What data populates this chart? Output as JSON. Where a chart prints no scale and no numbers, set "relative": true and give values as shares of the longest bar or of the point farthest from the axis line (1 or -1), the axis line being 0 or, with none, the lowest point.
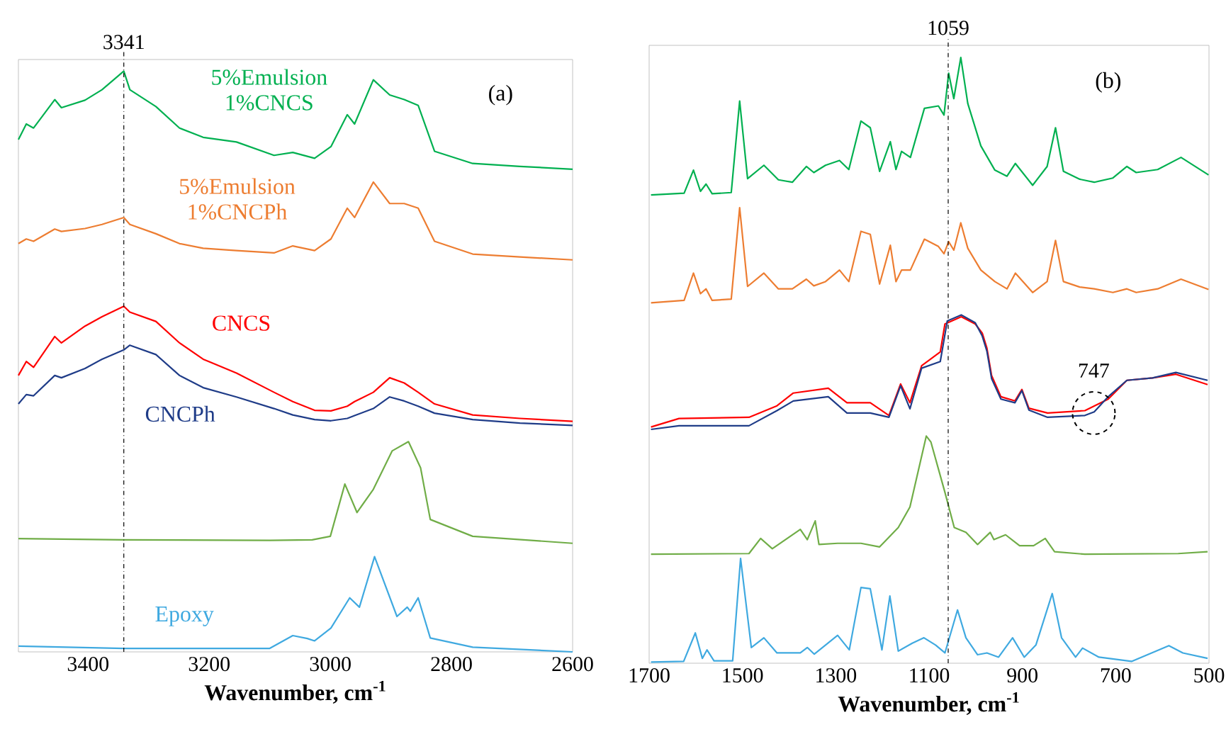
{
  "chart_data": [
    {
      "type": "line",
      "relative": true,
      "xlabel": "Wavenumber, cm$^{-1}$",
      "xlim": [
        3515,
        2600
      ],
      "xticks": [
        3400,
        3200,
        3000,
        2800,
        2600
      ],
      "annotations": [
        "(a)"
      ],
      "ref_lines": [
        {
          "axis": "x",
          "value": 3341,
          "label": "3341",
          "color": "#000000"
        }
      ],
      "series": [
        {
          "name": "5%Emulsion 1%CNCS",
          "color": "#00b050",
          "x": [
            3515,
            3502,
            3490,
            3455,
            3444,
            3405,
            3377,
            3341,
            3331,
            3288,
            3249,
            3210,
            3155,
            3093,
            3062,
            3026,
            2999,
            2972,
            2960,
            2929,
            2902,
            2878,
            2855,
            2828,
            2765,
            2687,
            2600
          ],
          "values": [
            0.882,
            0.909,
            0.902,
            0.951,
            0.937,
            0.95,
            0.968,
            1.0,
            0.968,
            0.939,
            0.902,
            0.886,
            0.878,
            0.855,
            0.86,
            0.85,
            0.87,
            0.925,
            0.909,
            0.985,
            0.959,
            0.951,
            0.941,
            0.862,
            0.841,
            0.836,
            0.831
          ]
        },
        {
          "name": "5%Emulsion 1%CNCPh",
          "color": "#ed7d31",
          "x": [
            3515,
            3502,
            3490,
            3455,
            3444,
            3405,
            3377,
            3341,
            3331,
            3288,
            3249,
            3210,
            3155,
            3093,
            3062,
            3026,
            2999,
            2972,
            2960,
            2929,
            2902,
            2878,
            2855,
            2828,
            2765,
            2687,
            2600
          ],
          "values": [
            0.703,
            0.711,
            0.707,
            0.728,
            0.724,
            0.729,
            0.736,
            0.748,
            0.736,
            0.72,
            0.703,
            0.695,
            0.691,
            0.687,
            0.699,
            0.691,
            0.711,
            0.764,
            0.748,
            0.809,
            0.772,
            0.772,
            0.764,
            0.707,
            0.685,
            0.68,
            0.675
          ]
        },
        {
          "name": "CNCS",
          "color": "#ff0000",
          "x": [
            3515,
            3502,
            3490,
            3455,
            3444,
            3405,
            3377,
            3341,
            3331,
            3288,
            3249,
            3210,
            3155,
            3093,
            3062,
            3026,
            2999,
            2972,
            2960,
            2929,
            2902,
            2878,
            2855,
            2828,
            2765,
            2687,
            2600
          ],
          "values": [
            0.476,
            0.5,
            0.49,
            0.543,
            0.532,
            0.561,
            0.577,
            0.595,
            0.585,
            0.569,
            0.532,
            0.504,
            0.48,
            0.447,
            0.431,
            0.416,
            0.415,
            0.423,
            0.431,
            0.447,
            0.472,
            0.463,
            0.447,
            0.427,
            0.408,
            0.402,
            0.397
          ]
        },
        {
          "name": "CNCPh",
          "color": "#1f3c88",
          "x": [
            3515,
            3502,
            3490,
            3455,
            3444,
            3405,
            3377,
            3341,
            3331,
            3288,
            3249,
            3210,
            3155,
            3093,
            3062,
            3026,
            2999,
            2972,
            2960,
            2929,
            2902,
            2878,
            2855,
            2828,
            2765,
            2687,
            2600
          ],
          "values": [
            0.427,
            0.443,
            0.441,
            0.476,
            0.472,
            0.488,
            0.504,
            0.52,
            0.528,
            0.512,
            0.476,
            0.455,
            0.439,
            0.419,
            0.408,
            0.4,
            0.398,
            0.402,
            0.407,
            0.419,
            0.439,
            0.432,
            0.423,
            0.411,
            0.4,
            0.394,
            0.39
          ]
        },
        {
          "color": "#70ad47",
          "x": [
            3515,
            3341,
            3100,
            3030,
            3000,
            2976,
            2956,
            2929,
            2898,
            2871,
            2851,
            2835,
            2765,
            2600
          ],
          "values": [
            0.195,
            0.193,
            0.192,
            0.193,
            0.199,
            0.289,
            0.24,
            0.28,
            0.346,
            0.362,
            0.317,
            0.228,
            0.199,
            0.187
          ]
        },
        {
          "name": "Epoxy",
          "color": "#3fa9e0",
          "x": [
            3515,
            3341,
            3100,
            3062,
            3038,
            3026,
            2999,
            2968,
            2952,
            2927,
            2890,
            2873,
            2868,
            2855,
            2835,
            2765,
            2600
          ],
          "values": [
            0.01,
            0.006,
            0.006,
            0.028,
            0.023,
            0.019,
            0.041,
            0.093,
            0.077,
            0.164,
            0.061,
            0.077,
            0.07,
            0.093,
            0.024,
            0.008,
            0.0
          ]
        }
      ]
    },
    {
      "type": "line",
      "relative": true,
      "xlabel": "Wavenumber, cm$^{-1}$",
      "xlim": [
        1700,
        500
      ],
      "xticks": [
        1700,
        1500,
        1300,
        1100,
        900,
        700,
        500
      ],
      "annotations": [
        "(b)",
        {
          "text": "747",
          "x": 747,
          "y": 0.413
        }
      ],
      "ref_lines": [
        {
          "axis": "x",
          "value": 1059,
          "label": "1059",
          "color": "#000000"
        }
      ],
      "series": [
        {
          "color": "#00b050",
          "x": [
            1696,
            1625,
            1605,
            1590,
            1578,
            1565,
            1524,
            1506,
            1489,
            1454,
            1423,
            1393,
            1363,
            1347,
            1322,
            1292,
            1272,
            1246,
            1226,
            1206,
            1183,
            1171,
            1159,
            1140,
            1110,
            1080,
            1068,
            1058,
            1047,
            1032,
            1017,
            989,
            959,
            933,
            915,
            878,
            847,
            829,
            812,
            777,
            746,
            706,
            676,
            656,
            610,
            560,
            501
          ],
          "values": [
            0.773,
            0.776,
            0.814,
            0.779,
            0.791,
            0.775,
            0.777,
            0.928,
            0.8,
            0.822,
            0.798,
            0.794,
            0.82,
            0.81,
            0.822,
            0.83,
            0.815,
            0.895,
            0.884,
            0.812,
            0.861,
            0.815,
            0.845,
            0.835,
            0.916,
            0.92,
            0.905,
            0.974,
            0.932,
            1.0,
            0.924,
            0.854,
            0.814,
            0.804,
            0.825,
            0.789,
            0.82,
            0.884,
            0.812,
            0.799,
            0.794,
            0.801,
            0.82,
            0.81,
            0.815,
            0.835,
            0.806
          ]
        },
        {
          "color": "#ed7d31",
          "x": [
            1696,
            1625,
            1605,
            1590,
            1578,
            1565,
            1524,
            1506,
            1489,
            1454,
            1423,
            1393,
            1363,
            1347,
            1322,
            1292,
            1272,
            1246,
            1226,
            1206,
            1183,
            1171,
            1159,
            1140,
            1110,
            1080,
            1068,
            1058,
            1047,
            1032,
            1017,
            989,
            959,
            933,
            915,
            878,
            847,
            829,
            812,
            777,
            746,
            706,
            676,
            656,
            610,
            560,
            501
          ],
          "values": [
            0.595,
            0.599,
            0.644,
            0.61,
            0.618,
            0.599,
            0.601,
            0.752,
            0.622,
            0.644,
            0.618,
            0.618,
            0.634,
            0.623,
            0.63,
            0.649,
            0.63,
            0.713,
            0.708,
            0.626,
            0.69,
            0.63,
            0.649,
            0.649,
            0.7,
            0.688,
            0.676,
            0.696,
            0.682,
            0.727,
            0.685,
            0.649,
            0.63,
            0.618,
            0.644,
            0.612,
            0.63,
            0.698,
            0.63,
            0.621,
            0.618,
            0.612,
            0.618,
            0.612,
            0.618,
            0.634,
            0.617
          ]
        },
        {
          "color": "#ff0000",
          "x": [
            1696,
            1636,
            1486,
            1426,
            1391,
            1316,
            1276,
            1226,
            1186,
            1161,
            1141,
            1116,
            1076,
            1066,
            1031,
            1001,
            986,
            976,
            966,
            946,
            916,
            901,
            886,
            846,
            766,
            716,
            676,
            621,
            571,
            503
          ],
          "values": [
            0.39,
            0.404,
            0.406,
            0.425,
            0.446,
            0.454,
            0.43,
            0.43,
            0.409,
            0.461,
            0.43,
            0.491,
            0.514,
            0.56,
            0.572,
            0.56,
            0.545,
            0.52,
            0.475,
            0.44,
            0.433,
            0.452,
            0.421,
            0.413,
            0.417,
            0.436,
            0.467,
            0.471,
            0.477,
            0.46
          ]
        },
        {
          "color": "#1f3c88",
          "x": [
            1696,
            1636,
            1486,
            1426,
            1391,
            1316,
            1276,
            1226,
            1186,
            1161,
            1141,
            1116,
            1076,
            1061,
            1031,
            1001,
            986,
            976,
            966,
            946,
            916,
            901,
            886,
            846,
            766,
            746,
            716,
            676,
            621,
            571,
            503
          ],
          "values": [
            0.386,
            0.392,
            0.392,
            0.417,
            0.433,
            0.44,
            0.413,
            0.413,
            0.406,
            0.458,
            0.42,
            0.487,
            0.498,
            0.565,
            0.575,
            0.562,
            0.54,
            0.515,
            0.47,
            0.436,
            0.43,
            0.45,
            0.418,
            0.406,
            0.409,
            0.415,
            0.44,
            0.467,
            0.471,
            0.48,
            0.467
          ]
        },
        {
          "color": "#70ad47",
          "x": [
            1696,
            1486,
            1461,
            1436,
            1376,
            1361,
            1344,
            1336,
            1296,
            1246,
            1206,
            1166,
            1141,
            1106,
            1096,
            1066,
            1046,
            1021,
            996,
            969,
            961,
            936,
            906,
            876,
            851,
            831,
            766,
            566,
            503
          ],
          "values": [
            0.18,
            0.181,
            0.206,
            0.189,
            0.221,
            0.204,
            0.235,
            0.196,
            0.198,
            0.198,
            0.192,
            0.224,
            0.258,
            0.375,
            0.365,
            0.282,
            0.224,
            0.216,
            0.196,
            0.216,
            0.204,
            0.212,
            0.194,
            0.194,
            0.206,
            0.184,
            0.18,
            0.181,
            0.184
          ]
        },
        {
          "color": "#3fa9e0",
          "x": [
            1696,
            1626,
            1601,
            1586,
            1576,
            1561,
            1521,
            1504,
            1481,
            1454,
            1426,
            1376,
            1361,
            1346,
            1296,
            1271,
            1246,
            1226,
            1201,
            1184,
            1166,
            1136,
            1111,
            1086,
            1066,
            1039,
            1021,
            996,
            976,
            951,
            921,
            896,
            871,
            836,
            816,
            786,
            771,
            736,
            666,
            586,
            556,
            503
          ],
          "values": [
            0.002,
            0.003,
            0.05,
            0.008,
            0.022,
            0.004,
            0.004,
            0.173,
            0.026,
            0.042,
            0.017,
            0.017,
            0.026,
            0.015,
            0.046,
            0.022,
            0.125,
            0.123,
            0.022,
            0.111,
            0.02,
            0.033,
            0.042,
            0.03,
            0.017,
            0.088,
            0.042,
            0.014,
            0.017,
            0.01,
            0.042,
            0.01,
            0.03,
            0.115,
            0.042,
            0.01,
            0.025,
            0.01,
            0.003,
            0.029,
            0.017,
            0.008
          ]
        }
      ]
    }
  ]
}
